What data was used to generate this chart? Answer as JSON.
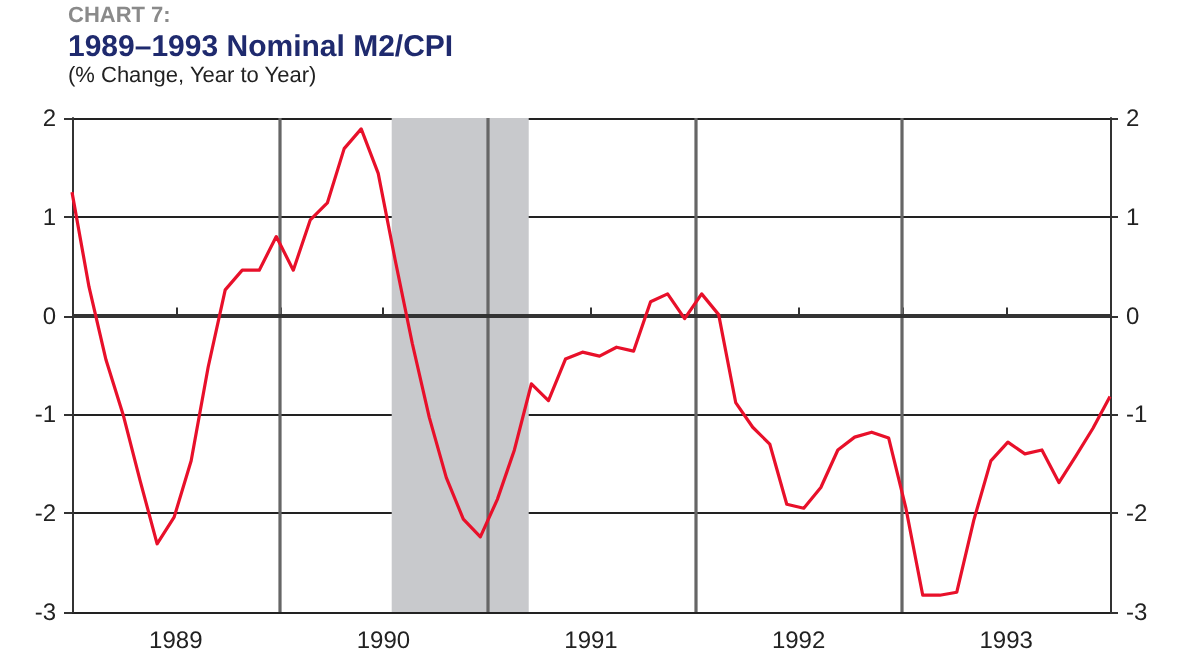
{
  "chart_data": {
    "type": "line",
    "annotations": [
      "CHART 7:"
    ],
    "title": "1989–1993 Nominal M2/CPI",
    "subtitle": "(% Change, Year to Year)",
    "x": [
      1989.0,
      1989.082,
      1989.164,
      1989.246,
      1989.328,
      1989.41,
      1989.492,
      1989.574,
      1989.656,
      1989.738,
      1989.82,
      1989.902,
      1989.984,
      1990.066,
      1990.148,
      1990.23,
      1990.311,
      1990.393,
      1990.475,
      1990.557,
      1990.639,
      1990.721,
      1990.803,
      1990.885,
      1990.967,
      1991.049,
      1991.131,
      1991.213,
      1991.295,
      1991.377,
      1991.459,
      1991.541,
      1991.623,
      1991.705,
      1991.787,
      1991.869,
      1991.951,
      1992.033,
      1992.115,
      1992.197,
      1992.279,
      1992.361,
      1992.443,
      1992.525,
      1992.607,
      1992.689,
      1992.77,
      1992.852,
      1992.934,
      1993.016,
      1993.098,
      1993.18,
      1993.262,
      1993.344,
      1993.426,
      1993.508,
      1993.59,
      1993.672,
      1993.754,
      1993.836,
      1993.918,
      1994.0
    ],
    "values": [
      1.25,
      0.29,
      -0.45,
      -1.0,
      -1.67,
      -2.31,
      -2.04,
      -1.47,
      -0.52,
      0.26,
      0.46,
      0.46,
      0.8,
      0.46,
      0.97,
      1.14,
      1.69,
      1.89,
      1.44,
      0.56,
      -0.28,
      -1.03,
      -1.64,
      -2.06,
      -2.24,
      -1.86,
      -1.36,
      -0.69,
      -0.86,
      -0.44,
      -0.37,
      -0.41,
      -0.32,
      -0.36,
      0.14,
      0.22,
      -0.03,
      0.22,
      0.01,
      -0.88,
      -1.13,
      -1.3,
      -1.91,
      -1.95,
      -1.74,
      -1.36,
      -1.23,
      -1.18,
      -1.24,
      -1.94,
      -2.83,
      -2.83,
      -2.8,
      -2.07,
      -1.47,
      -1.28,
      -1.4,
      -1.36,
      -1.69,
      -1.42,
      -1.14,
      -0.82
    ],
    "color": "#e8102a",
    "xlim": [
      1989,
      1994
    ],
    "xticks": [
      {
        "value": 1989,
        "label": null
      },
      {
        "value": 1989.5,
        "label": "1989"
      },
      {
        "value": 1990,
        "label": null
      },
      {
        "value": 1990.5,
        "label": "1990"
      },
      {
        "value": 1991,
        "label": null
      },
      {
        "value": 1991.5,
        "label": "1991"
      },
      {
        "value": 1992,
        "label": null
      },
      {
        "value": 1992.5,
        "label": "1992"
      },
      {
        "value": 1993,
        "label": null
      },
      {
        "value": 1993.5,
        "label": "1993"
      },
      {
        "value": 1994,
        "label": null
      }
    ],
    "ylim": [
      -3,
      2
    ],
    "yticks": [
      -3,
      -2,
      -1,
      0,
      1,
      2
    ],
    "y2lim": [
      -3,
      2
    ],
    "y2ticks": [
      -3,
      -2,
      -1,
      0,
      1,
      2
    ],
    "grid": "y",
    "ref_lines": [
      {
        "axis": "x",
        "value": 1990,
        "color": "#666666"
      },
      {
        "axis": "x",
        "value": 1991,
        "color": "#666666"
      },
      {
        "axis": "x",
        "value": 1992,
        "color": "#666666"
      },
      {
        "axis": "x",
        "value": 1993,
        "color": "#666666"
      }
    ],
    "bands": [
      {
        "axis": "x",
        "from": 1990.54,
        "to": 1991.2,
        "color": "#c8c9cc"
      }
    ]
  }
}
